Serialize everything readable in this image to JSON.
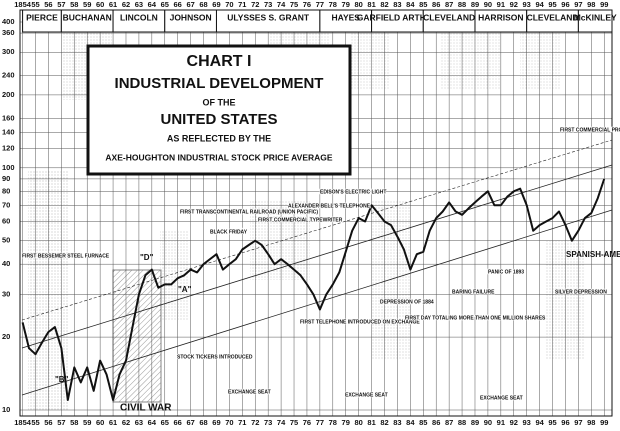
{
  "chart_data": {
    "type": "line",
    "title": [
      "CHART I",
      "INDUSTRIAL DEVELOPMENT",
      "OF THE",
      "UNITED STATES",
      "AS REFLECTED BY THE",
      "AXE-HOUGHTON INDUSTRIAL STOCK PRICE AVERAGE"
    ],
    "x": [
      1854,
      1854.5,
      1855,
      1855.5,
      1856,
      1856.5,
      1857,
      1857.5,
      1858,
      1858.5,
      1859,
      1859.5,
      1860,
      1860.5,
      1861,
      1861.5,
      1862,
      1862.5,
      1863,
      1863.5,
      1864,
      1864.5,
      1865,
      1865.5,
      1866,
      1866.5,
      1867,
      1867.5,
      1868,
      1868.5,
      1869,
      1869.5,
      1870,
      1870.5,
      1871,
      1871.5,
      1872,
      1872.5,
      1873,
      1873.5,
      1874,
      1874.5,
      1875,
      1875.5,
      1876,
      1876.5,
      1877,
      1877.5,
      1878,
      1878.5,
      1879,
      1879.5,
      1880,
      1880.5,
      1881,
      1881.5,
      1882,
      1882.5,
      1883,
      1883.5,
      1884,
      1884.5,
      1885,
      1885.5,
      1886,
      1886.5,
      1887,
      1887.5,
      1888,
      1888.5,
      1889,
      1889.5,
      1890,
      1890.5,
      1891,
      1891.5,
      1892,
      1892.5,
      1893,
      1893.5,
      1894,
      1894.5,
      1895,
      1895.5,
      1896,
      1896.5,
      1897,
      1897.5,
      1898,
      1898.5,
      1899
    ],
    "values": [
      23,
      18,
      17,
      19,
      21,
      22,
      18,
      11,
      15,
      13,
      15,
      12,
      16,
      14,
      11,
      14,
      16,
      22,
      30,
      36,
      38,
      32,
      33,
      33,
      35,
      36,
      38,
      37,
      40,
      42,
      44,
      38,
      40,
      42,
      46,
      48,
      50,
      48,
      44,
      40,
      42,
      40,
      38,
      36,
      33,
      30,
      26,
      30,
      33,
      37,
      45,
      55,
      62,
      60,
      70,
      65,
      60,
      58,
      52,
      46,
      38,
      44,
      45,
      55,
      62,
      66,
      72,
      66,
      64,
      68,
      72,
      76,
      80,
      70,
      70,
      76,
      80,
      82,
      70,
      55,
      58,
      60,
      62,
      66,
      58,
      50,
      55,
      62,
      65,
      75,
      90
    ],
    "color": "#111111",
    "xlim": [
      1853.8,
      1899.6
    ],
    "xticks": [
      {
        "value": 1854,
        "label": "1854"
      },
      {
        "value": 1855,
        "label": "55"
      },
      {
        "value": 1856,
        "label": "56"
      },
      {
        "value": 1857,
        "label": "57"
      },
      {
        "value": 1858,
        "label": "58"
      },
      {
        "value": 1859,
        "label": "59"
      },
      {
        "value": 1860,
        "label": "60"
      },
      {
        "value": 1861,
        "label": "61"
      },
      {
        "value": 1862,
        "label": "62"
      },
      {
        "value": 1863,
        "label": "63"
      },
      {
        "value": 1864,
        "label": "64"
      },
      {
        "value": 1865,
        "label": "65"
      },
      {
        "value": 1866,
        "label": "66"
      },
      {
        "value": 1867,
        "label": "67"
      },
      {
        "value": 1868,
        "label": "68"
      },
      {
        "value": 1869,
        "label": "69"
      },
      {
        "value": 1870,
        "label": "70"
      },
      {
        "value": 1871,
        "label": "71"
      },
      {
        "value": 1872,
        "label": "72"
      },
      {
        "value": 1873,
        "label": "73"
      },
      {
        "value": 1874,
        "label": "74"
      },
      {
        "value": 1875,
        "label": "75"
      },
      {
        "value": 1876,
        "label": "76"
      },
      {
        "value": 1877,
        "label": "77"
      },
      {
        "value": 1878,
        "label": "78"
      },
      {
        "value": 1879,
        "label": "79"
      },
      {
        "value": 1880,
        "label": "80"
      },
      {
        "value": 1881,
        "label": "81"
      },
      {
        "value": 1882,
        "label": "82"
      },
      {
        "value": 1883,
        "label": "83"
      },
      {
        "value": 1884,
        "label": "84"
      },
      {
        "value": 1885,
        "label": "85"
      },
      {
        "value": 1886,
        "label": "86"
      },
      {
        "value": 1887,
        "label": "87"
      },
      {
        "value": 1888,
        "label": "88"
      },
      {
        "value": 1889,
        "label": "89"
      },
      {
        "value": 1890,
        "label": "90"
      },
      {
        "value": 1891,
        "label": "91"
      },
      {
        "value": 1892,
        "label": "92"
      },
      {
        "value": 1893,
        "label": "93"
      },
      {
        "value": 1894,
        "label": "94"
      },
      {
        "value": 1895,
        "label": "95"
      },
      {
        "value": 1896,
        "label": "96"
      },
      {
        "value": 1897,
        "label": "97"
      },
      {
        "value": 1898,
        "label": "98"
      },
      {
        "value": 1899,
        "label": "99"
      }
    ],
    "ylim": [
      10,
      400
    ],
    "yticks": [
      10,
      20,
      30,
      40,
      50,
      60,
      70,
      80,
      90,
      100,
      120,
      140,
      160,
      200,
      240,
      300,
      360,
      400
    ],
    "log_y": true,
    "grid": true,
    "presidents": [
      {
        "name": "PIERCE",
        "start": 1854,
        "end": 1857
      },
      {
        "name": "BUCHANAN",
        "start": 1857,
        "end": 1861
      },
      {
        "name": "LINCOLN",
        "start": 1861,
        "end": 1865
      },
      {
        "name": "JOHNSON",
        "start": 1865,
        "end": 1869
      },
      {
        "name": "ULYSSES S. GRANT",
        "start": 1869,
        "end": 1877
      },
      {
        "name": "HAYES",
        "start": 1877,
        "end": 1881
      },
      {
        "name": "GARFIELD ARTHUR",
        "start": 1881,
        "end": 1885
      },
      {
        "name": "CLEVELAND",
        "start": 1885,
        "end": 1889
      },
      {
        "name": "HARRISON",
        "start": 1889,
        "end": 1893
      },
      {
        "name": "CLEVELAND",
        "start": 1893,
        "end": 1897
      },
      {
        "name": "McKINLEY",
        "start": 1897,
        "end": 1899.6
      }
    ],
    "annotations": [
      "FIRST BESSEMER STEEL FURNACE",
      "STOCK TICKERS INTRODUCED",
      "FIRST TRANSCONTINENTAL RAILROAD (UNION PACIFIC)",
      "BLACK FRIDAY",
      "FIRST COMMERCIAL TYPEWRITER",
      "ALEXANDER BELL'S TELEPHONE",
      "EDISON'S ELECTRIC LIGHT",
      "FIRST TELEPHONE INTRODUCED ON EXCHANGE",
      "DEPRESSION OF 1884",
      "FIRST DAY TOTALING MORE THAN ONE MILLION SHARES",
      "BARING FAILURE",
      "PANIC OF 1893",
      "SILVER DEPRESSION",
      "FIRST COMMERCIAL PRODUCTION AUTOMOBILES",
      "EXCHANGE SEAT",
      "EXCHANGE SEAT",
      "EXCHANGE SEAT",
      "CIVIL WAR",
      "SPANISH-AMERICAN WAR",
      "\"A\"",
      "\"B\"",
      "\"D\""
    ]
  }
}
